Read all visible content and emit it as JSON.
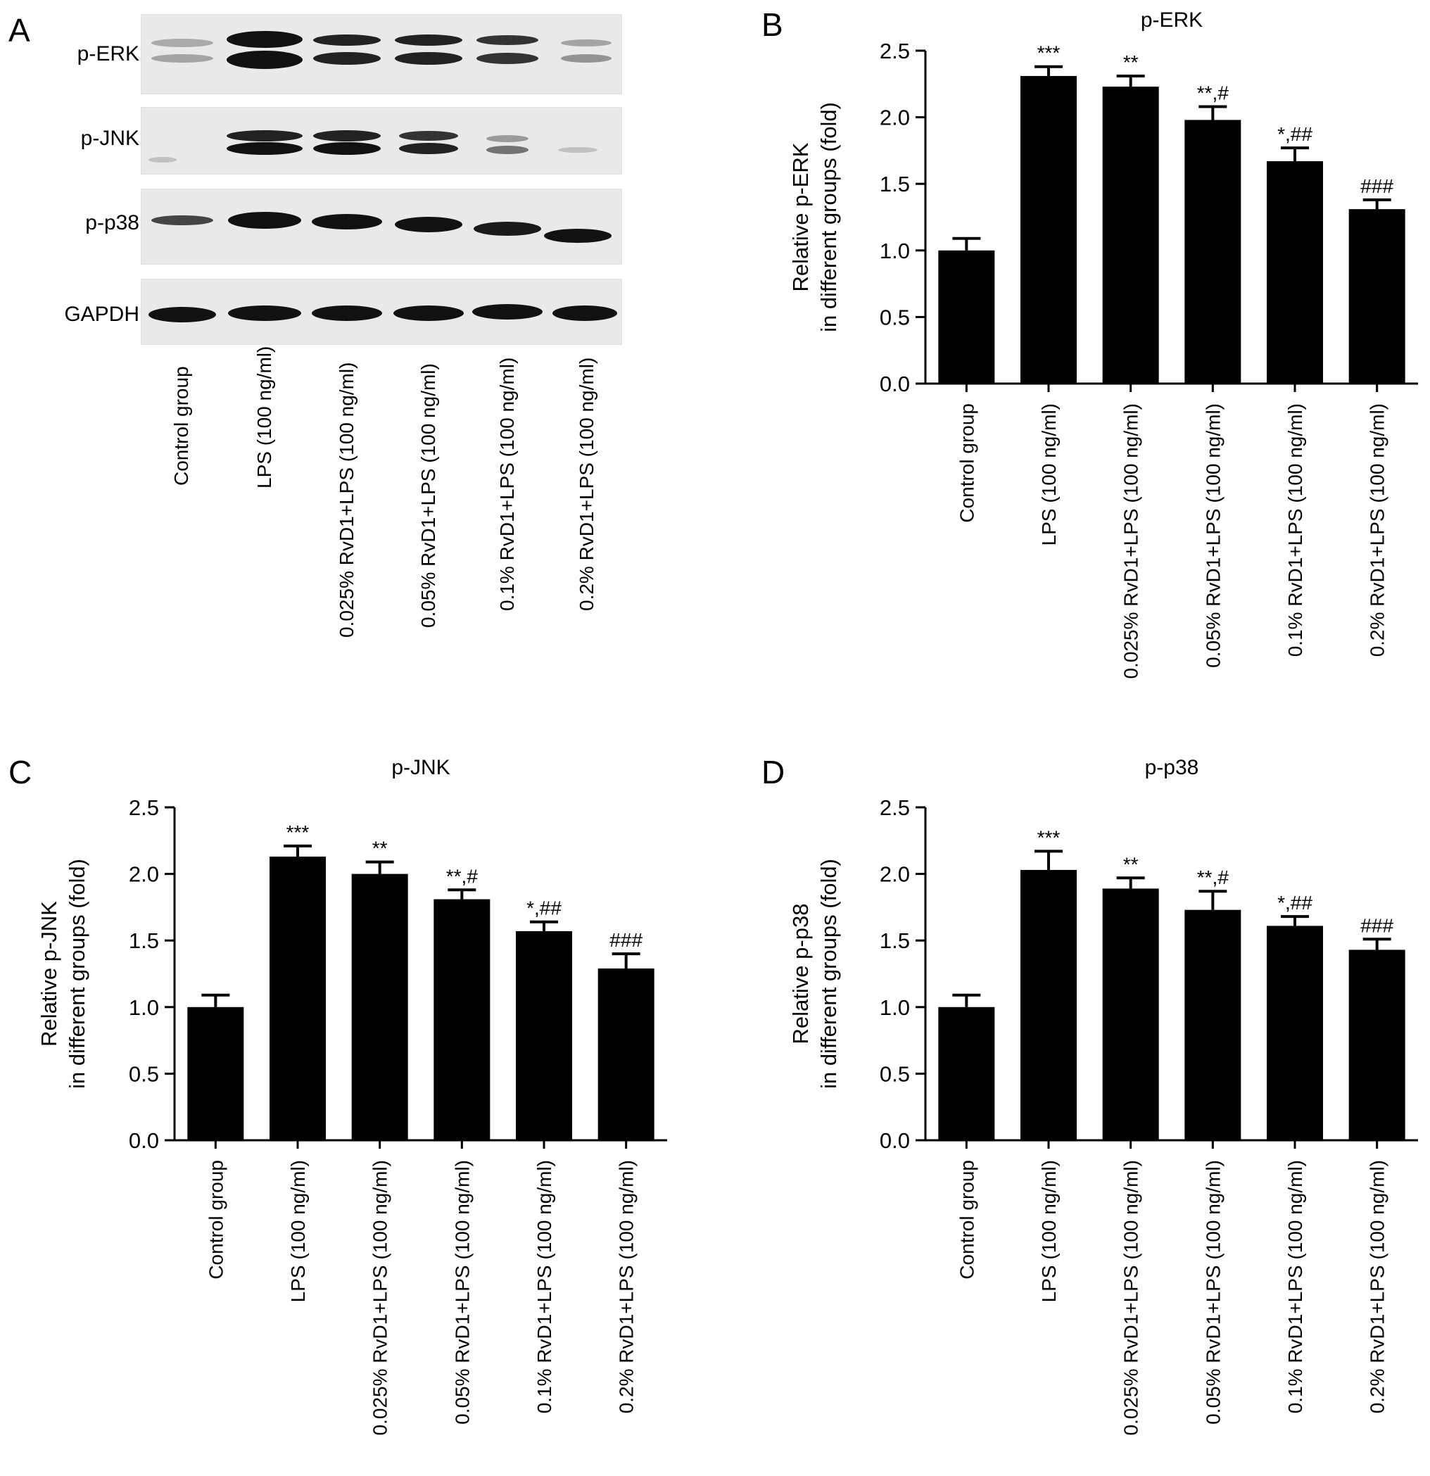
{
  "panels": {
    "a": "A",
    "b": "B",
    "c": "C",
    "d": "D"
  },
  "blot": {
    "proteins": [
      "p-ERK",
      "p-JNK",
      "p-p38",
      "GAPDH"
    ],
    "lanes": [
      "Control group",
      "LPS (100 ng/ml)",
      "0.025% RvD1+LPS (100 ng/ml)",
      "0.05% RvD1+LPS (100 ng/ml)",
      "0.1% RvD1+LPS (100 ng/ml)",
      "0.2% RvD1+LPS (100 ng/ml)"
    ]
  },
  "chart_data": [
    {
      "type": "bar",
      "title": "p-ERK",
      "ylabel": [
        "Relative p-ERK",
        "in different groups (fold)"
      ],
      "categories": [
        "Control group",
        "LPS (100 ng/ml)",
        "0.025% RvD1+LPS (100 ng/ml)",
        "0.05% RvD1+LPS (100 ng/ml)",
        "0.1% RvD1+LPS (100 ng/ml)",
        "0.2% RvD1+LPS (100 ng/ml)"
      ],
      "values": [
        1.0,
        2.31,
        2.23,
        1.98,
        1.67,
        1.31
      ],
      "errors": [
        0.09,
        0.07,
        0.08,
        0.1,
        0.1,
        0.07
      ],
      "annotations": [
        "",
        "***",
        "**",
        "**,#",
        "*,##",
        "###"
      ],
      "ylim": [
        0,
        2.5
      ],
      "yticks": [
        "0.0",
        "0.5",
        "1.0",
        "1.5",
        "2.0",
        "2.5"
      ],
      "bar_color": "#000000"
    },
    {
      "type": "bar",
      "title": "p-JNK",
      "ylabel": [
        "Relative p-JNK",
        "in different groups (fold)"
      ],
      "categories": [
        "Control group",
        "LPS (100 ng/ml)",
        "0.025% RvD1+LPS (100 ng/ml)",
        "0.05% RvD1+LPS (100 ng/ml)",
        "0.1% RvD1+LPS (100 ng/ml)",
        "0.2% RvD1+LPS (100 ng/ml)"
      ],
      "values": [
        1.0,
        2.13,
        2.0,
        1.81,
        1.57,
        1.29
      ],
      "errors": [
        0.09,
        0.08,
        0.09,
        0.07,
        0.07,
        0.11
      ],
      "annotations": [
        "",
        "***",
        "**",
        "**,#",
        "*,##",
        "###"
      ],
      "ylim": [
        0,
        2.5
      ],
      "yticks": [
        "0.0",
        "0.5",
        "1.0",
        "1.5",
        "2.0",
        "2.5"
      ],
      "bar_color": "#000000"
    },
    {
      "type": "bar",
      "title": "p-p38",
      "ylabel": [
        "Relative p-p38",
        "in different groups (fold)"
      ],
      "categories": [
        "Control group",
        "LPS (100 ng/ml)",
        "0.025% RvD1+LPS (100 ng/ml)",
        "0.05% RvD1+LPS (100 ng/ml)",
        "0.1% RvD1+LPS (100 ng/ml)",
        "0.2% RvD1+LPS (100 ng/ml)"
      ],
      "values": [
        1.0,
        2.03,
        1.89,
        1.73,
        1.61,
        1.43
      ],
      "errors": [
        0.09,
        0.14,
        0.08,
        0.14,
        0.07,
        0.08
      ],
      "annotations": [
        "",
        "***",
        "**",
        "**,#",
        "*,##",
        "###"
      ],
      "ylim": [
        0,
        2.5
      ],
      "yticks": [
        "0.0",
        "0.5",
        "1.0",
        "1.5",
        "2.0",
        "2.5"
      ],
      "bar_color": "#000000"
    }
  ]
}
